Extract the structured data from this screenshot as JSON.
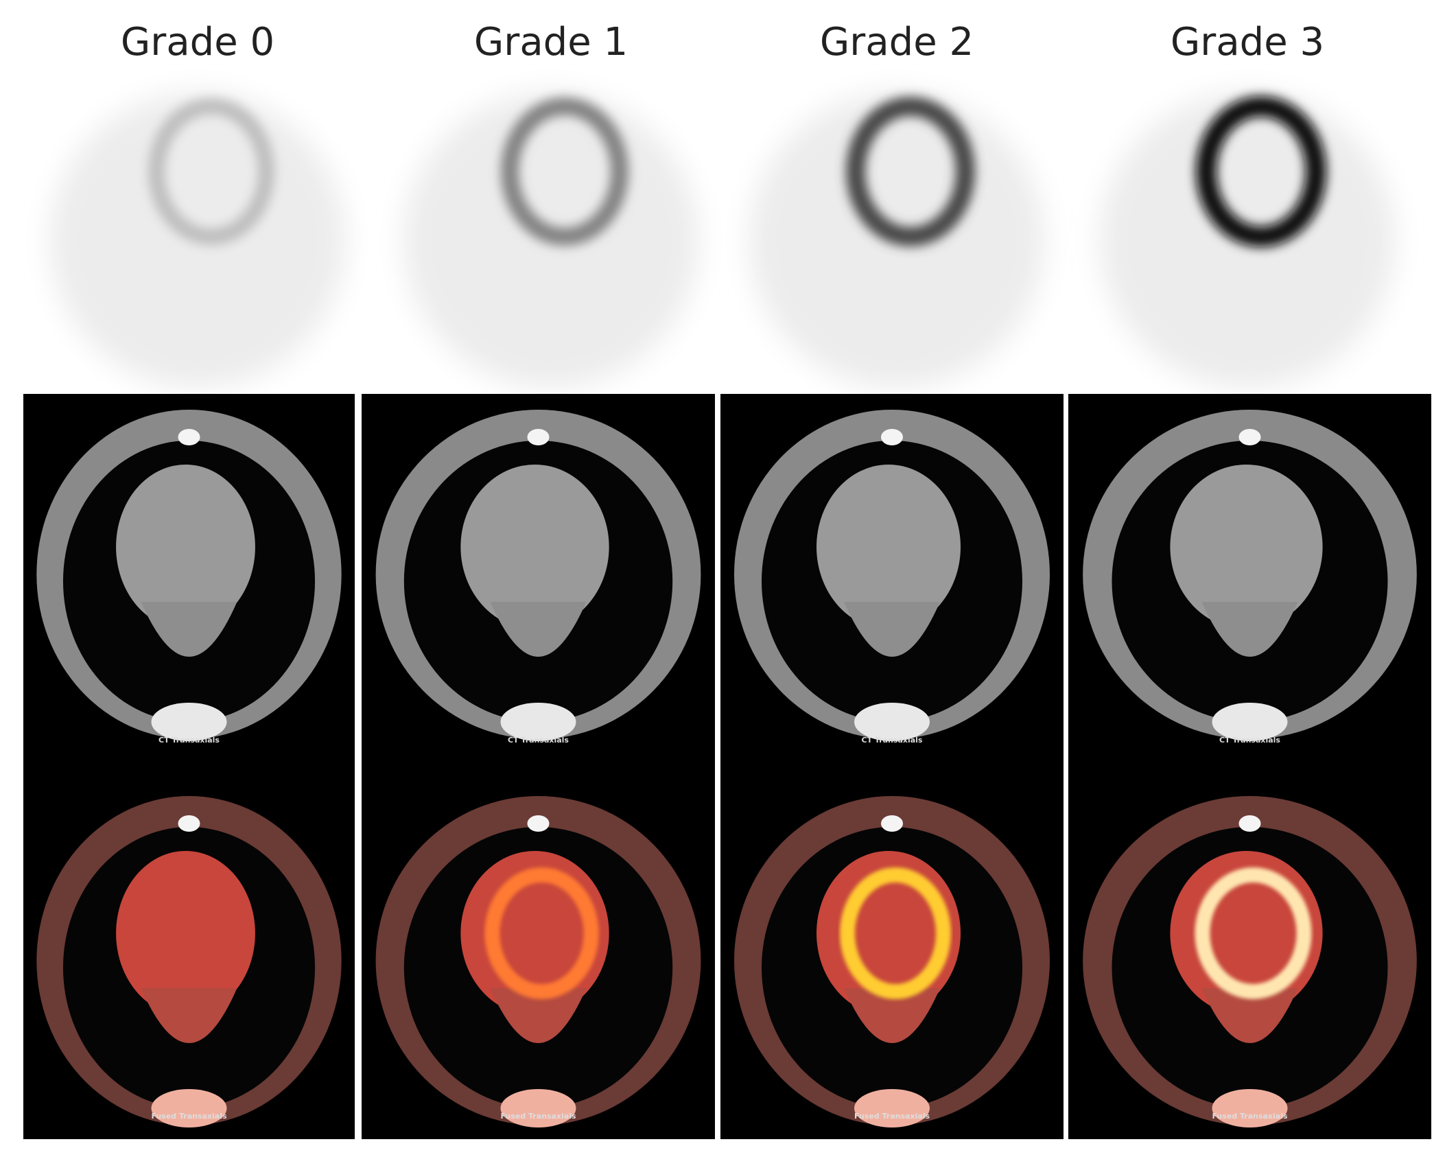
{
  "panels": [
    {
      "title": "Grade 0",
      "ct_label": "CT Transaxials",
      "fused_label": "Fused Transaxials"
    },
    {
      "title": "Grade 1",
      "ct_label": "CT Transaxials",
      "fused_label": "Fused Transaxials"
    },
    {
      "title": "Grade 2",
      "ct_label": "CT Transaxials",
      "fused_label": "Fused Transaxials"
    },
    {
      "title": "Grade 3",
      "ct_label": "CT Transaxials",
      "fused_label": "Fused Transaxials"
    }
  ]
}
